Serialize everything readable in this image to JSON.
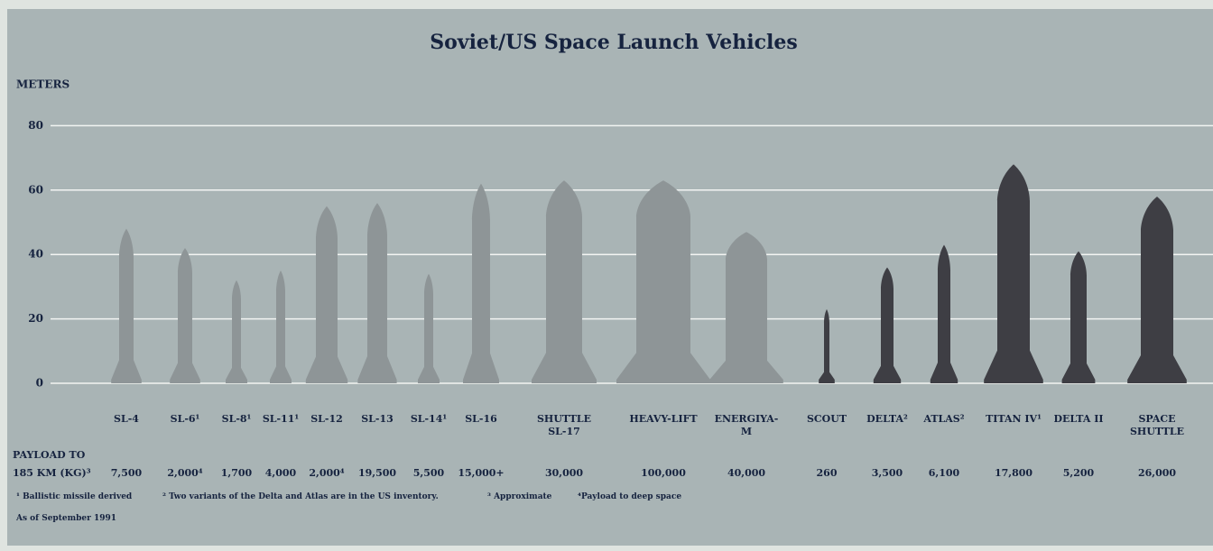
{
  "chart_data": {
    "type": "rocket",
    "title": "Soviet/US Space Launch Vehicles",
    "y_label": "METERS",
    "ylim": [
      0,
      90
    ],
    "yticks": [
      0,
      20,
      40,
      60,
      80
    ],
    "grid": true,
    "categories": [
      "SL-4",
      "SL-6¹",
      "SL-8¹",
      "SL-11¹",
      "SL-12",
      "SL-13",
      "SL-14¹",
      "SL-16",
      "SHUTTLE SL-17",
      "HEAVY-LIFT",
      "ENERGIYA-M",
      "SCOUT",
      "DELTA²",
      "ATLAS²",
      "TITAN IV¹",
      "DELTA II",
      "SPACE SHUTTLE"
    ],
    "values": [
      48,
      42,
      32,
      35,
      55,
      56,
      34,
      62,
      63,
      63,
      47,
      23,
      36,
      43,
      68,
      41,
      58
    ],
    "colors": [
      "#8e9597",
      "#8e9597",
      "#8e9597",
      "#8e9597",
      "#8e9597",
      "#8e9597",
      "#8e9597",
      "#8e9597",
      "#8e9597",
      "#8e9597",
      "#8e9597",
      "#3e3e44",
      "#3e3e44",
      "#3e3e44",
      "#3e3e44",
      "#3e3e44",
      "#3e3e44"
    ],
    "payload_label": "PAYLOAD TO 185 KM (KG)³",
    "payload": [
      "7,500",
      "2,000⁴",
      "1,700",
      "4,000",
      "2,000⁴",
      "19,500",
      "5,500",
      "15,000+",
      "30,000",
      "100,000",
      "40,000",
      "260",
      "3,500",
      "6,100",
      "17,800",
      "5,200",
      "26,000"
    ],
    "footnotes": [
      "¹ Ballistic missile derived",
      "² Two variants of the Delta and Atlas are in the US inventory.",
      "³ Approximate",
      "⁴Payload to deep space"
    ],
    "date_note": "As of September 1991"
  }
}
